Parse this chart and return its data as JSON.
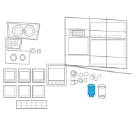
{
  "bg_color": "#ffffff",
  "line_color": "#999999",
  "highlight_color": "#29ABE2",
  "highlight_dark": "#1A7FAD",
  "fig_width": 2.0,
  "fig_height": 2.0,
  "dpi": 100,
  "lw": 0.5
}
